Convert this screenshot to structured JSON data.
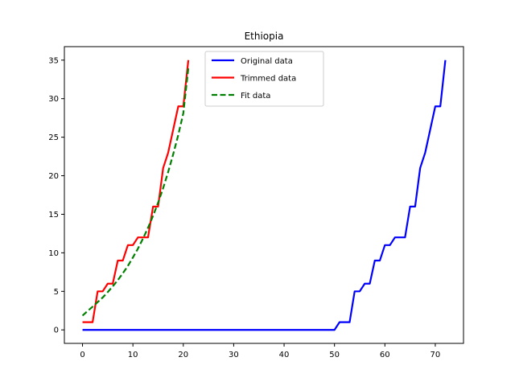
{
  "chart_data": {
    "type": "line",
    "title": "Ethiopia",
    "xlabel": "",
    "ylabel": "",
    "xlim": [
      -3.6,
      75.6
    ],
    "ylim": [
      -1.75,
      36.75
    ],
    "xticks": [
      0,
      10,
      20,
      30,
      40,
      50,
      60,
      70
    ],
    "yticks": [
      0,
      5,
      10,
      15,
      20,
      25,
      30,
      35
    ],
    "grid": false,
    "legend_position": "upper-center",
    "series": [
      {
        "name": "Original data",
        "color": "#0000ff",
        "style": "solid",
        "x": [
          0,
          1,
          2,
          3,
          4,
          5,
          6,
          7,
          8,
          9,
          10,
          11,
          12,
          13,
          14,
          15,
          16,
          17,
          18,
          19,
          20,
          21,
          22,
          23,
          24,
          25,
          26,
          27,
          28,
          29,
          30,
          31,
          32,
          33,
          34,
          35,
          36,
          37,
          38,
          39,
          40,
          41,
          42,
          43,
          44,
          45,
          46,
          47,
          48,
          49,
          50,
          51,
          52,
          53,
          54,
          55,
          56,
          57,
          58,
          59,
          60,
          61,
          62,
          63,
          64,
          65,
          66,
          67,
          68,
          69,
          70,
          71,
          72
        ],
        "y": [
          0,
          0,
          0,
          0,
          0,
          0,
          0,
          0,
          0,
          0,
          0,
          0,
          0,
          0,
          0,
          0,
          0,
          0,
          0,
          0,
          0,
          0,
          0,
          0,
          0,
          0,
          0,
          0,
          0,
          0,
          0,
          0,
          0,
          0,
          0,
          0,
          0,
          0,
          0,
          0,
          0,
          0,
          0,
          0,
          0,
          0,
          0,
          0,
          0,
          0,
          0,
          1,
          1,
          1,
          5,
          5,
          6,
          6,
          9,
          9,
          11,
          11,
          12,
          12,
          12,
          16,
          16,
          21,
          23,
          26,
          29,
          29,
          35
        ]
      },
      {
        "name": "Trimmed data",
        "color": "#ff0000",
        "style": "solid",
        "x": [
          0,
          1,
          2,
          3,
          4,
          5,
          6,
          7,
          8,
          9,
          10,
          11,
          12,
          13,
          14,
          15,
          16,
          17,
          18,
          19,
          20,
          21
        ],
        "y": [
          1,
          1,
          1,
          5,
          5,
          6,
          6,
          9,
          9,
          11,
          11,
          12,
          12,
          12,
          16,
          16,
          21,
          23,
          26,
          29,
          29,
          35
        ]
      },
      {
        "name": "Fit data",
        "color": "#008000",
        "style": "dashed",
        "x": [
          0,
          1,
          2,
          3,
          4,
          5,
          6,
          7,
          8,
          9,
          10,
          11,
          12,
          13,
          14,
          15,
          16,
          17,
          18,
          19,
          20,
          21
        ],
        "y": [
          1.85,
          2.45,
          3.0,
          3.6,
          4.2,
          4.9,
          5.65,
          6.45,
          7.35,
          8.3,
          9.4,
          10.55,
          11.85,
          13.25,
          14.8,
          16.5,
          18.4,
          20.5,
          22.8,
          25.3,
          28.1,
          34.0
        ]
      }
    ]
  }
}
